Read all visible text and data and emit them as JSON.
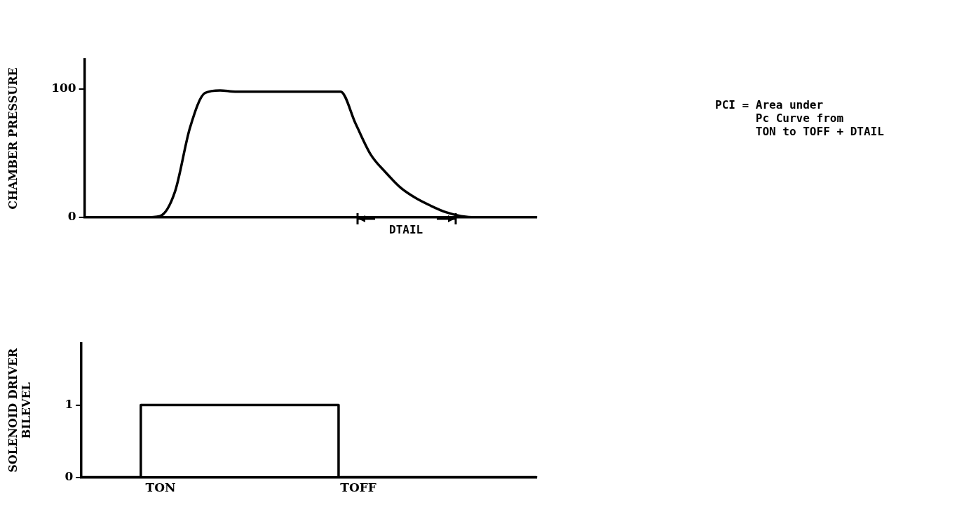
{
  "chart_data": [
    {
      "type": "line",
      "ylabel": "CHAMBER PRESSURE",
      "categories": [
        null,
        null,
        null,
        null,
        null,
        null,
        null,
        null,
        null,
        null,
        null,
        null,
        null,
        null,
        null,
        null,
        null,
        null,
        null,
        null,
        null,
        null,
        null,
        null,
        null,
        null,
        null,
        null,
        null,
        null,
        null
      ],
      "series": [
        {
          "color": "#000000",
          "values": [
            0,
            0,
            0,
            0,
            0,
            1,
            20,
            70,
            97,
            99,
            98,
            98,
            98,
            98,
            98,
            98,
            98,
            98,
            73,
            49,
            35,
            23,
            15,
            9,
            4,
            1,
            0,
            0,
            0,
            0,
            0
          ]
        }
      ],
      "ylim": [
        0,
        123
      ],
      "yticks": [
        0,
        100
      ],
      "grid": false,
      "legend": false,
      "marker": "none",
      "line_style": "solid",
      "tick_labels": "y",
      "annotations": [
        "DTAIL",
        "PCI = Area under\n      Pc Curve from\n      TON to TOFF + DTAIL"
      ]
    },
    {
      "type": "step",
      "ylabel": "SOLENOID DRIVER\nBILEVEL",
      "categories": [
        null,
        null,
        null,
        null,
        "TON",
        null,
        null,
        null,
        null,
        null,
        null,
        null,
        null,
        null,
        "TOFF",
        null,
        null,
        null,
        null,
        null,
        null,
        null,
        null,
        null
      ],
      "series": [
        {
          "color": "#000000",
          "values": [
            0,
            0,
            0,
            0,
            1,
            1,
            1,
            1,
            1,
            1,
            1,
            1,
            1,
            1,
            0,
            0,
            0,
            0,
            0,
            0,
            0,
            0,
            0,
            0
          ]
        }
      ],
      "ylim": [
        0,
        1.85
      ],
      "yticks": [
        0,
        1
      ],
      "grid": false,
      "legend": false,
      "marker": "none",
      "line_style": "solid"
    }
  ]
}
